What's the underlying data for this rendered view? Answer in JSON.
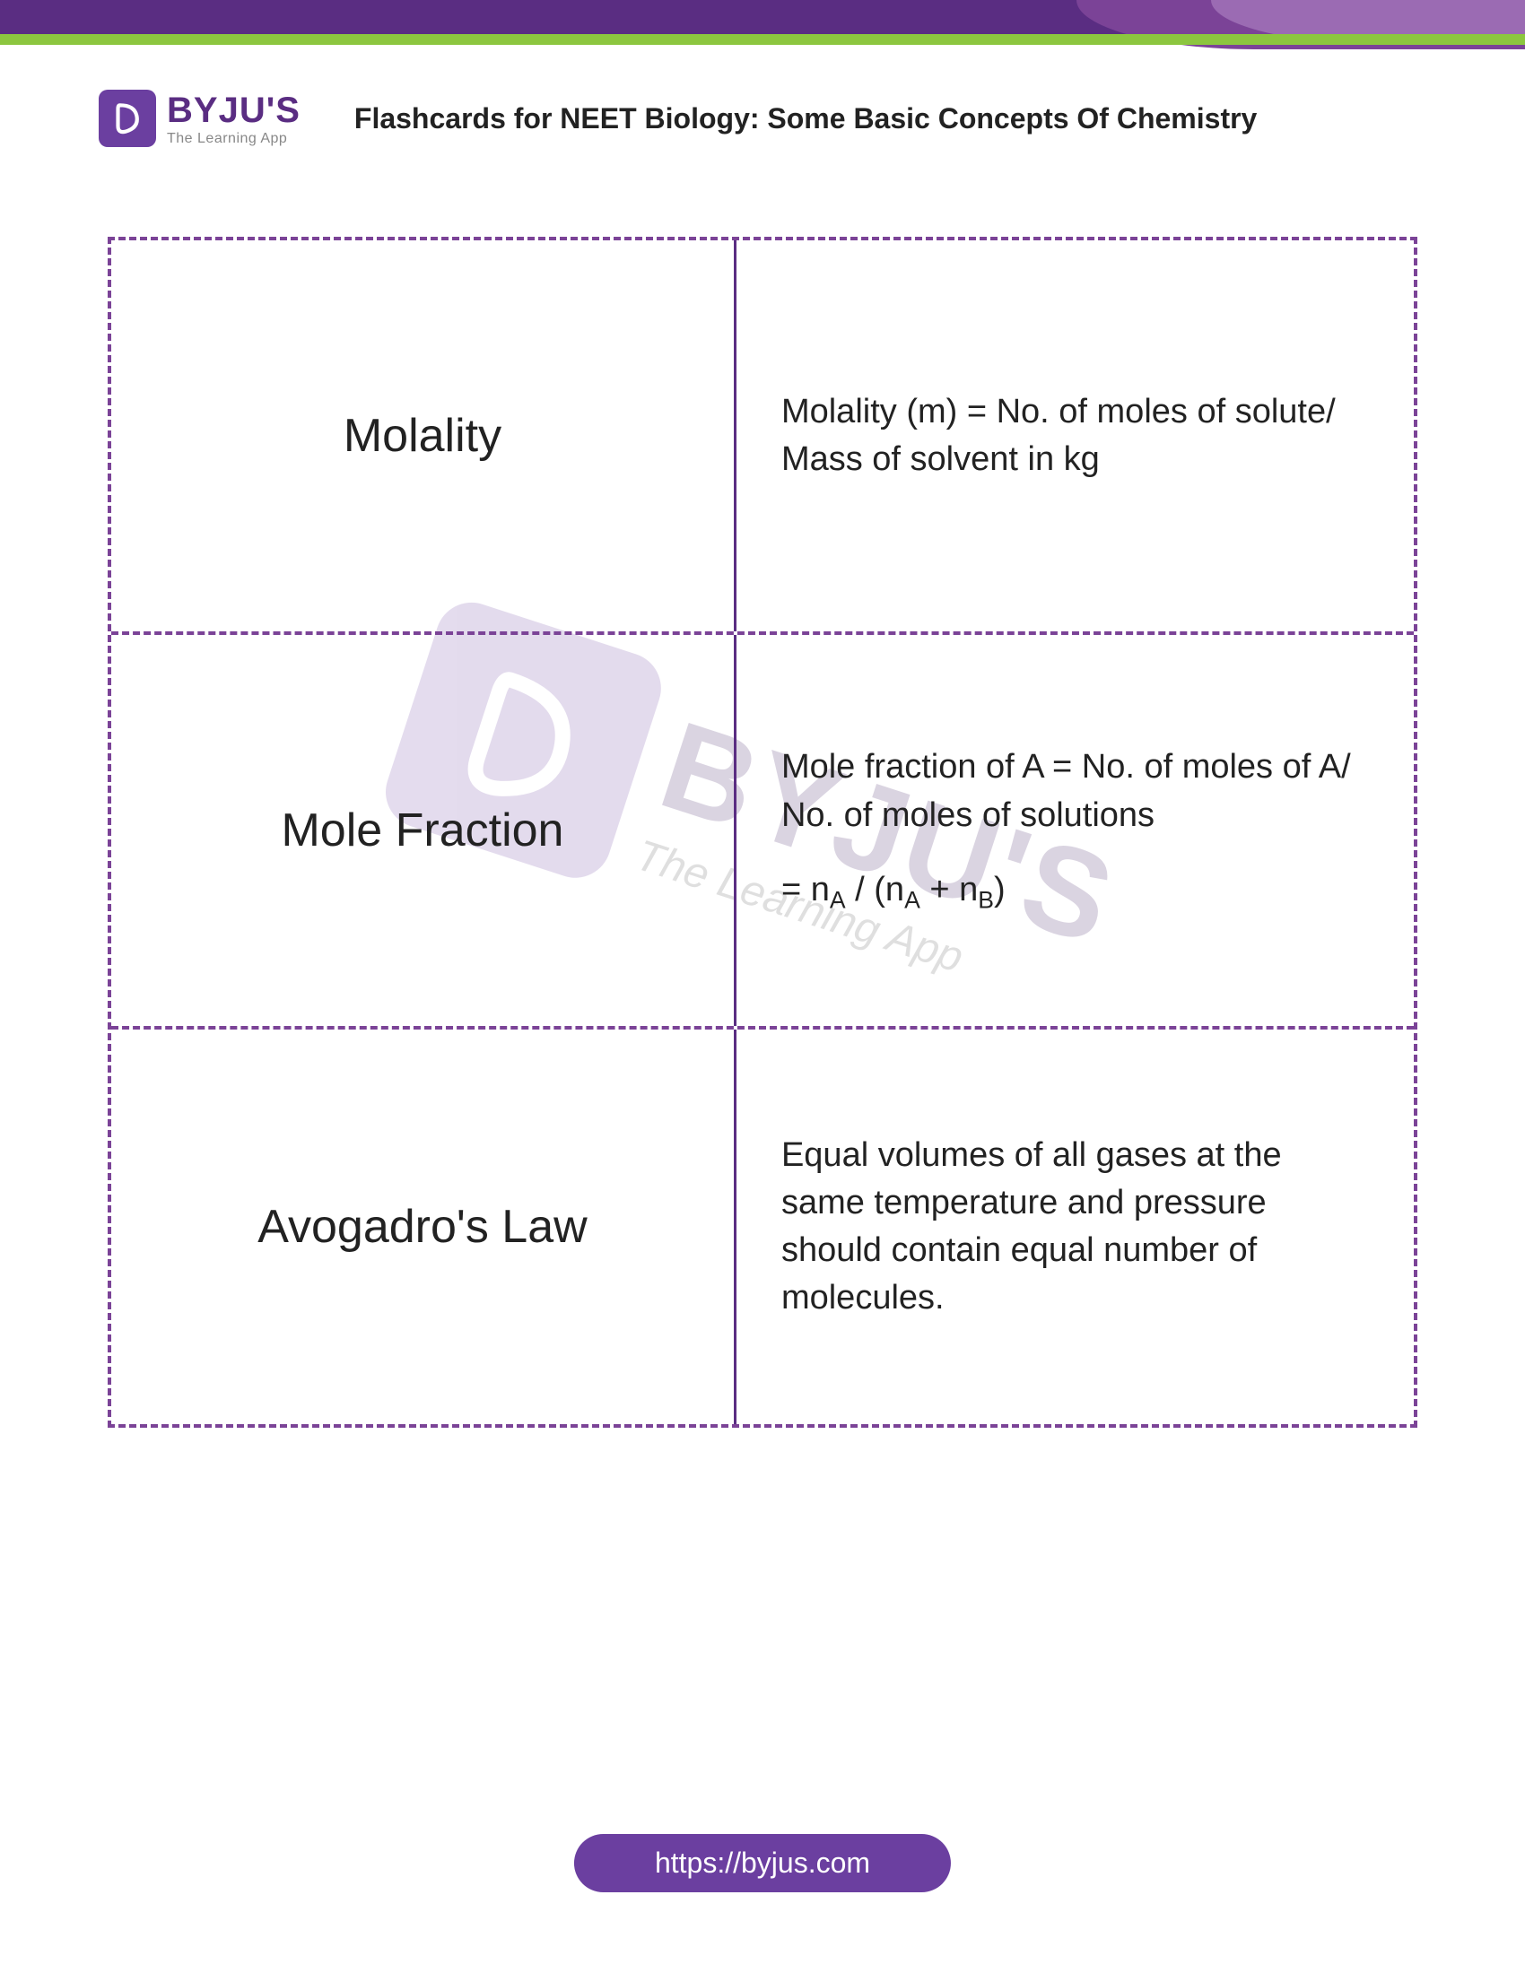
{
  "brand": {
    "name": "BYJU'S",
    "tagline": "The Learning App",
    "logo_bg": "#6b3fa0",
    "brand_color": "#5a2d82"
  },
  "page_title": "Flashcards for NEET Biology: Some Basic Concepts Of Chemistry",
  "banner": {
    "purple": "#5a2d82",
    "green": "#8cc63f",
    "curve1": "#7b4397",
    "curve2": "#9b6bb3"
  },
  "grid": {
    "border_color": "#7b4397",
    "divider_color": "#5a2d82",
    "term_fontsize": 52,
    "def_fontsize": 38
  },
  "cards": [
    {
      "term": "Molality",
      "definition": "Molality (m) = No. of moles of solute/ Mass of solvent in kg"
    },
    {
      "term": "Mole Fraction",
      "definition": "Mole fraction of A = No. of moles of A/ No. of moles of solutions",
      "definition2_html": "= n<span class=\"sub\">A</span> / (n<span class=\"sub\">A</span> + n<span class=\"sub\">B</span>)"
    },
    {
      "term": "Avogadro's Law",
      "definition": "Equal volumes of all gases at the same temperature and pressure should contain equal number of molecules."
    }
  ],
  "watermark": {
    "brand": "BYJU'S",
    "tagline": "The Learning App",
    "opacity": 0.18
  },
  "footer": {
    "url": "https://byjus.com",
    "bg": "#6b3fa0",
    "color": "#ffffff"
  }
}
